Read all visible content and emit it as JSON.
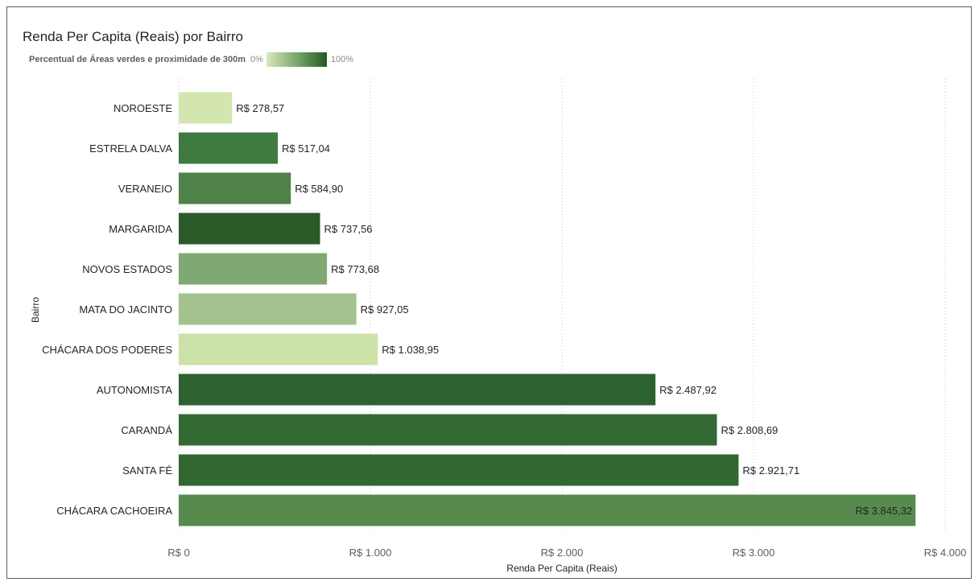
{
  "title": "Renda Per Capita (Reais) por Bairro",
  "legend": {
    "title": "Percentual de Áreas verdes e proximidade de 300m",
    "min_label": "0%",
    "max_label": "100%",
    "colors": [
      "#d9e9bb",
      "#7aa76a",
      "#1f5a24"
    ]
  },
  "chart_data": {
    "type": "bar",
    "orientation": "horizontal",
    "title": "Renda Per Capita (Reais) por Bairro",
    "xlabel": "Renda Per Capita (Reais)",
    "ylabel": "Bairro",
    "xlim": [
      0,
      4000
    ],
    "xticks": [
      0,
      1000,
      2000,
      3000,
      4000
    ],
    "xtick_labels": [
      "R$ 0",
      "R$ 1.000",
      "R$ 2.000",
      "R$ 3.000",
      "R$ 4.000"
    ],
    "grid": "vertical dotted",
    "categories": [
      "NOROESTE",
      "ESTRELA DALVA",
      "VERANEIO",
      "MARGARIDA",
      "NOVOS ESTADOS",
      "MATA DO JACINTO",
      "CHÁCARA DOS PODERES",
      "AUTONOMISTA",
      "CARANDÁ",
      "SANTA FÉ",
      "CHÁCARA CACHOEIRA"
    ],
    "values": [
      278.57,
      517.04,
      584.9,
      737.56,
      773.68,
      927.05,
      1038.95,
      2487.92,
      2808.69,
      2921.71,
      3845.32
    ],
    "value_labels": [
      "R$ 278,57",
      "R$ 517,04",
      "R$ 584,90",
      "R$ 737,56",
      "R$ 773,68",
      "R$ 927,05",
      "R$ 1.038,95",
      "R$ 2.487,92",
      "R$ 2.808,69",
      "R$ 2.921,71",
      "R$ 3.845,32"
    ],
    "colors": [
      "#d3e6b0",
      "#3f7a3e",
      "#4e8249",
      "#2a5b28",
      "#7fa873",
      "#a3c28e",
      "#cde2a9",
      "#2c6130",
      "#336a33",
      "#316830",
      "#578b4d"
    ]
  }
}
